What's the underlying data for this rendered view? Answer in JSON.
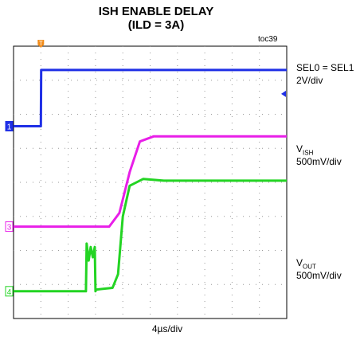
{
  "chart": {
    "title_line1": "ISH ENABLE DELAY",
    "title_line2": "(ILD = 3A)",
    "fig_id": "toc39",
    "time_div": "4µs/div",
    "trigger_marker": "T",
    "colors": {
      "ch1": "#1f2fe6",
      "ch3": "#e81ee8",
      "ch4": "#23d423",
      "grid": "#9a9a9a",
      "frame": "#000000"
    }
  },
  "labels": {
    "ch1_name": "SEL0 = SEL1",
    "ch1_scale": "2V/div",
    "ch3_name_main": "V",
    "ch3_name_sub": "ISH",
    "ch3_scale": "500mV/div",
    "ch4_name_main": "V",
    "ch4_name_sub": "OUT",
    "ch4_scale": "500mV/div"
  },
  "markers": {
    "ch1": "1",
    "ch3": "3",
    "ch4": "4"
  },
  "chart_data": {
    "type": "line",
    "x_unit": "µs",
    "x_range": [
      0,
      40
    ],
    "y_unit": "div",
    "y_range": [
      -4,
      4
    ],
    "grid": true,
    "series": [
      {
        "name": "SEL0 = SEL1",
        "scale": "2V/div",
        "x": [
          0,
          4,
          4.05,
          40
        ],
        "y": [
          1.65,
          1.65,
          3.3,
          3.3
        ]
      },
      {
        "name": "VISH",
        "scale": "500mV/div",
        "x": [
          0,
          14.0,
          15.5,
          17.0,
          18.5,
          20.5,
          40
        ],
        "y": [
          -1.3,
          -1.3,
          -0.9,
          0.3,
          1.2,
          1.35,
          1.35
        ]
      },
      {
        "name": "VOUT",
        "scale": "500mV/div",
        "x": [
          0,
          10.6,
          10.7,
          11.0,
          11.3,
          11.6,
          11.9,
          12.0,
          12.1,
          14.5,
          15.3,
          16.0,
          17.0,
          19.0,
          22.0,
          40
        ],
        "y": [
          -3.2,
          -3.2,
          -1.8,
          -2.3,
          -1.9,
          -2.2,
          -1.9,
          -3.2,
          -3.15,
          -3.1,
          -2.7,
          -1.0,
          -0.1,
          0.1,
          0.05,
          0.05
        ]
      }
    ]
  }
}
